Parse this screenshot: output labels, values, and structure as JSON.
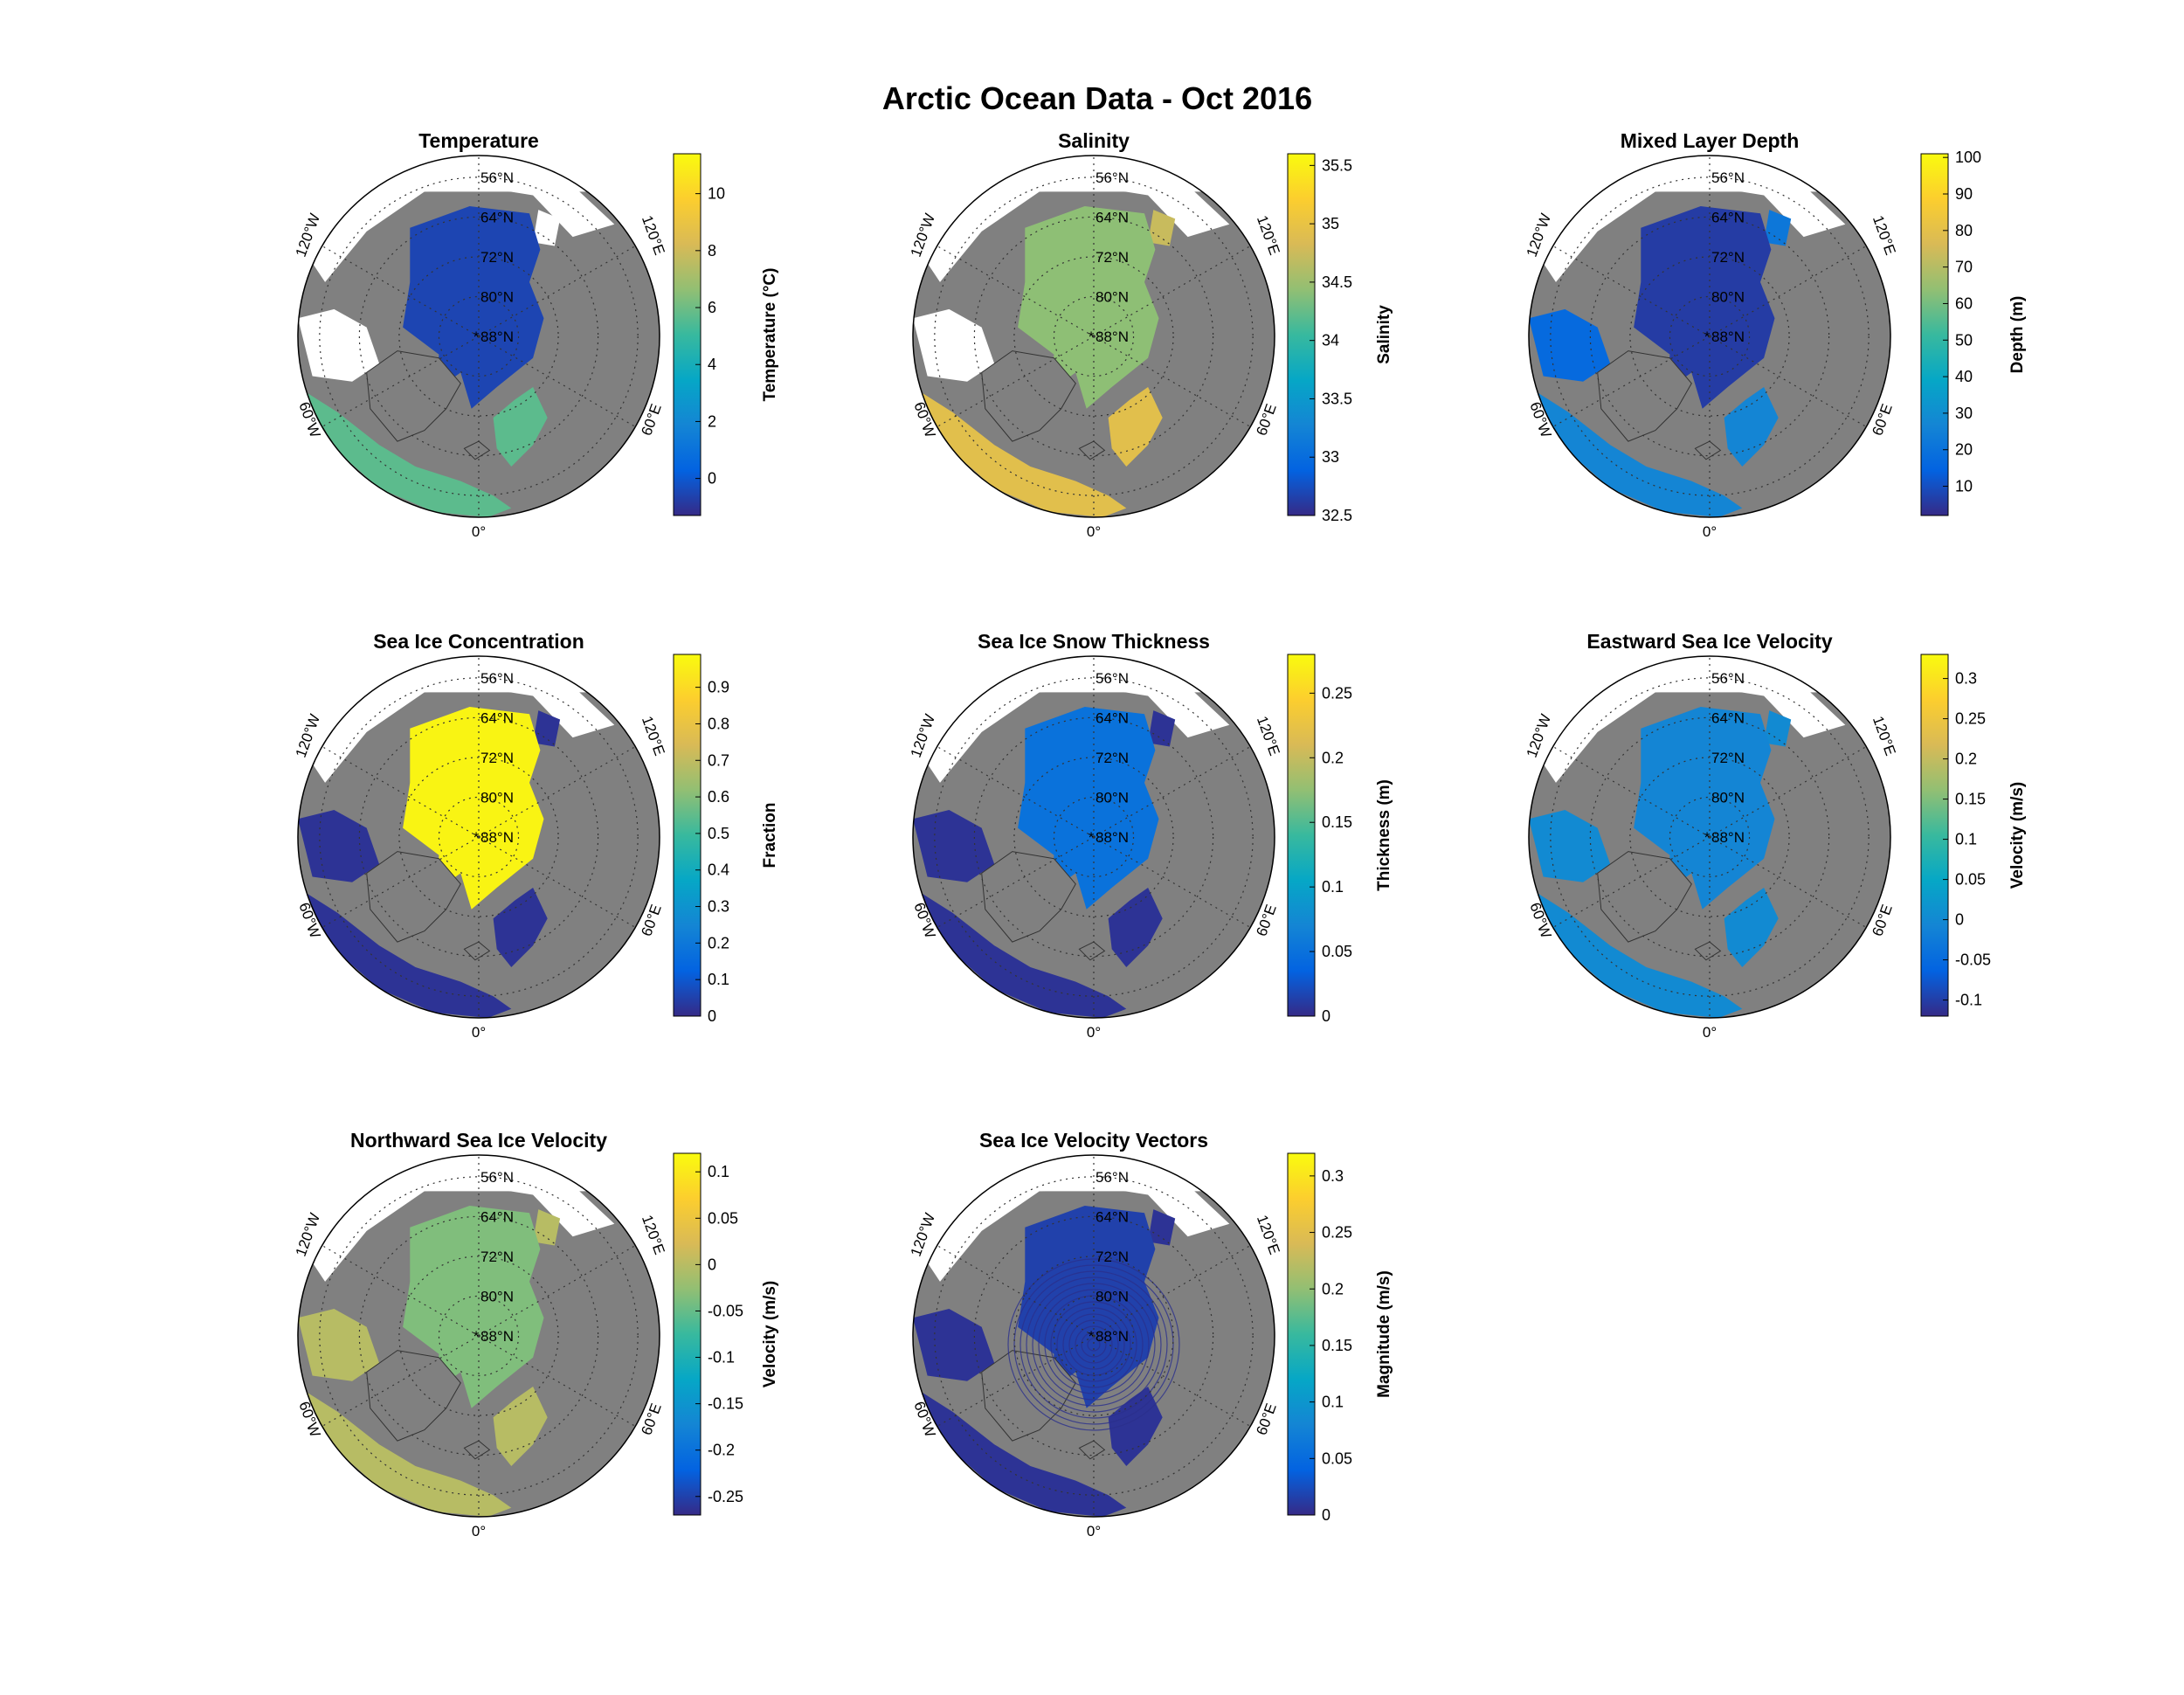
{
  "figure_title": "Arctic Ocean Data - Oct 2016",
  "colors": {
    "land": "#808080",
    "no_data": "#ffffff",
    "colormap": "parula",
    "parula_stops": [
      "#352a87",
      "#0363e1",
      "#1485d4",
      "#06a7c6",
      "#38b99e",
      "#92bf73",
      "#d9ba56",
      "#fcce2e",
      "#f9fb0e"
    ]
  },
  "graticule": {
    "lat_labels": [
      "56°N",
      "64°N",
      "72°N",
      "80°N",
      "88°N"
    ],
    "lon_labels": [
      "0°",
      "60°E",
      "120°E",
      "60°W",
      "120°W"
    ]
  },
  "panels": [
    {
      "title": "Temperature",
      "colorbar_label": "Temperature (°C)",
      "cmin": -1.3,
      "cmax": 11.4,
      "ticks": [
        "-0",
        "2",
        "4",
        "6",
        "8",
        "10"
      ],
      "tick_values": [
        0,
        2,
        4,
        6,
        8,
        10
      ],
      "tick_texts": [
        "0",
        "2",
        "4",
        "6",
        "8",
        "10"
      ],
      "ice_level": 0.06,
      "pacific_level": null,
      "atlantic_level": 0.55,
      "hudson_level": null
    },
    {
      "title": "Salinity",
      "colorbar_label": "Salinity",
      "cmin": 32.5,
      "cmax": 35.6,
      "tick_values": [
        32.5,
        33,
        33.5,
        34,
        34.5,
        35,
        35.5
      ],
      "tick_texts": [
        "32.5",
        "33",
        "33.5",
        "34",
        "34.5",
        "35",
        "35.5"
      ],
      "ice_level": 0.62,
      "pacific_level": 0.72,
      "atlantic_level": 0.78,
      "hudson_level": null
    },
    {
      "title": "Mixed Layer Depth",
      "colorbar_label": "Depth (m)",
      "cmin": 2,
      "cmax": 101,
      "tick_values": [
        10,
        20,
        30,
        40,
        50,
        60,
        70,
        80,
        90,
        100
      ],
      "tick_texts": [
        "10",
        "20",
        "30",
        "40",
        "50",
        "60",
        "70",
        "80",
        "90",
        "100"
      ],
      "ice_level": 0.04,
      "pacific_level": 0.2,
      "atlantic_level": 0.25,
      "hudson_level": 0.15
    },
    {
      "title": "Sea Ice Concentration",
      "colorbar_label": "Fraction",
      "cmin": 0,
      "cmax": 0.99,
      "tick_values": [
        0,
        0.1,
        0.2,
        0.3,
        0.4,
        0.5,
        0.6,
        0.7,
        0.8,
        0.9
      ],
      "tick_texts": [
        "0",
        "0.1",
        "0.2",
        "0.3",
        "0.4",
        "0.5",
        "0.6",
        "0.7",
        "0.8",
        "0.9"
      ],
      "ice_level": 0.98,
      "pacific_level": 0.02,
      "atlantic_level": 0.02,
      "hudson_level": 0.02
    },
    {
      "title": "Sea Ice Snow Thickness",
      "colorbar_label": "Thickness (m)",
      "cmin": 0,
      "cmax": 0.28,
      "tick_values": [
        0,
        0.05,
        0.1,
        0.15,
        0.2,
        0.25
      ],
      "tick_texts": [
        "0",
        "0.05",
        "0.1",
        "0.15",
        "0.2",
        "0.25"
      ],
      "ice_level": 0.18,
      "pacific_level": 0.02,
      "atlantic_level": 0.02,
      "hudson_level": 0.02
    },
    {
      "title": "Eastward Sea Ice Velocity",
      "colorbar_label": "Velocity (m/s)",
      "cmin": -0.12,
      "cmax": 0.33,
      "tick_values": [
        -0.1,
        -0.05,
        0,
        0.05,
        0.1,
        0.15,
        0.2,
        0.25,
        0.3
      ],
      "tick_texts": [
        "-0.1",
        "-0.05",
        "0",
        "0.05",
        "0.1",
        "0.15",
        "0.2",
        "0.25",
        "0.3"
      ],
      "ice_level": 0.25,
      "pacific_level": 0.27,
      "atlantic_level": 0.27,
      "hudson_level": 0.27
    },
    {
      "title": "Northward Sea Ice Velocity",
      "colorbar_label": "Velocity (m/s)",
      "cmin": -0.27,
      "cmax": 0.12,
      "tick_values": [
        -0.25,
        -0.2,
        -0.15,
        -0.1,
        -0.05,
        0,
        0.05,
        0.1
      ],
      "tick_texts": [
        "-0.25",
        "-0.2",
        "-0.15",
        "-0.1",
        "-0.05",
        "0",
        "0.05",
        "0.1"
      ],
      "ice_level": 0.6,
      "pacific_level": 0.69,
      "atlantic_level": 0.69,
      "hudson_level": 0.69
    },
    {
      "title": "Sea Ice Velocity Vectors",
      "colorbar_label": "Magnitude (m/s)",
      "cmin": 0,
      "cmax": 0.32,
      "tick_values": [
        0,
        0.05,
        0.1,
        0.15,
        0.2,
        0.25,
        0.3
      ],
      "tick_texts": [
        "0",
        "0.05",
        "0.1",
        "0.15",
        "0.2",
        "0.25",
        "0.3"
      ],
      "ice_level": 0.05,
      "pacific_level": 0.02,
      "atlantic_level": 0.02,
      "hudson_level": 0.02
    }
  ]
}
